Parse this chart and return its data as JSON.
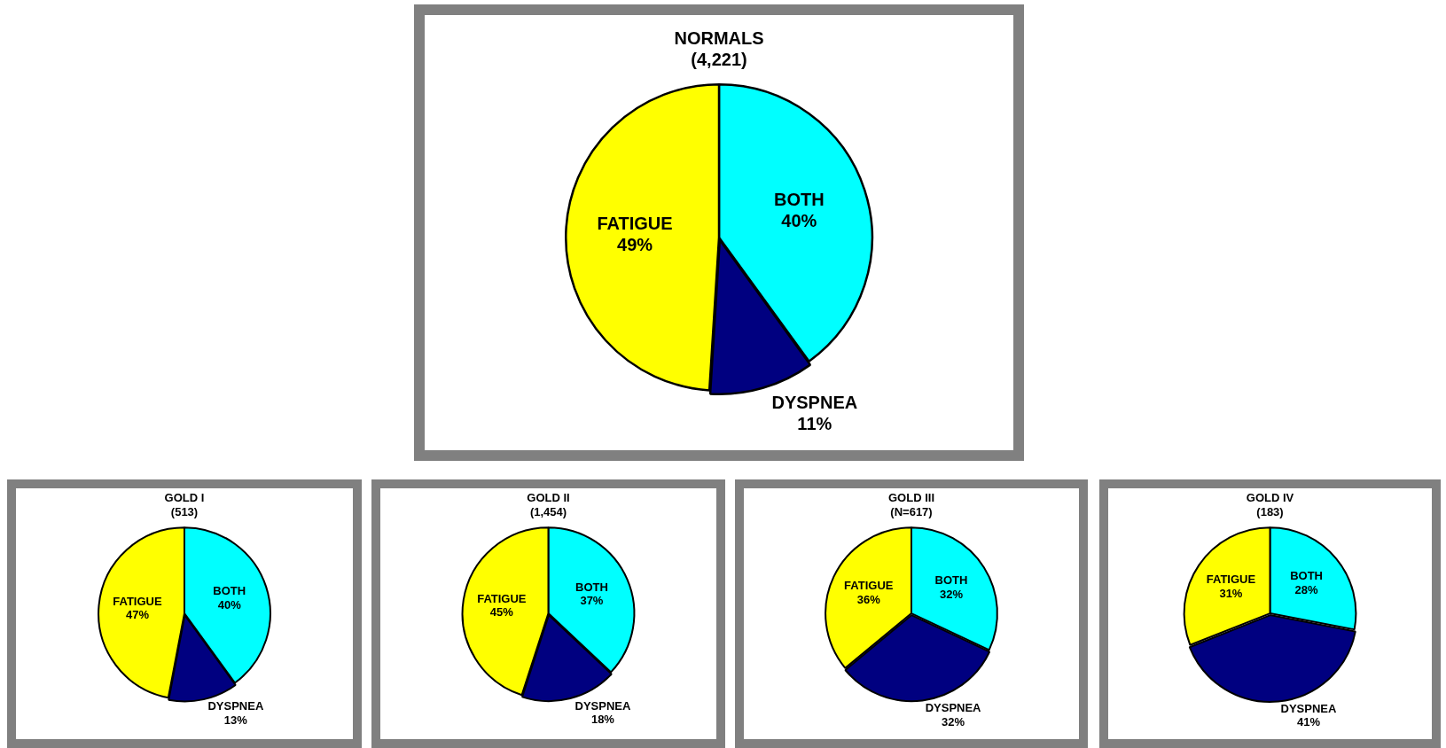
{
  "chart_data": [
    {
      "type": "pie",
      "title": "NORMALS",
      "subtitle": "(4,221)",
      "categories": [
        "BOTH",
        "DYSPNEA",
        "FATIGUE"
      ],
      "values": [
        40,
        11,
        49
      ],
      "colors": [
        "#00ffff",
        "#000080",
        "#ffff00"
      ],
      "value_labels": [
        "40%",
        "11%",
        "49%"
      ],
      "legend": false
    },
    {
      "type": "pie",
      "title": "GOLD I",
      "subtitle": "(513)",
      "categories": [
        "BOTH",
        "DYSPNEA",
        "FATIGUE"
      ],
      "values": [
        40,
        13,
        47
      ],
      "colors": [
        "#00ffff",
        "#000080",
        "#ffff00"
      ],
      "value_labels": [
        "40%",
        "13%",
        "47%"
      ],
      "legend": false
    },
    {
      "type": "pie",
      "title": "GOLD II",
      "subtitle": "(1,454)",
      "categories": [
        "BOTH",
        "DYSPNEA",
        "FATIGUE"
      ],
      "values": [
        37,
        18,
        45
      ],
      "colors": [
        "#00ffff",
        "#000080",
        "#ffff00"
      ],
      "value_labels": [
        "37%",
        "18%",
        "45%"
      ],
      "legend": false
    },
    {
      "type": "pie",
      "title": "GOLD III",
      "subtitle": "(N=617)",
      "categories": [
        "BOTH",
        "DYSPNEA",
        "FATIGUE"
      ],
      "values": [
        32,
        32,
        36
      ],
      "colors": [
        "#00ffff",
        "#000080",
        "#ffff00"
      ],
      "value_labels": [
        "32%",
        "32%",
        "36%"
      ],
      "legend": false
    },
    {
      "type": "pie",
      "title": "GOLD IV",
      "subtitle": "(183)",
      "categories": [
        "BOTH",
        "DYSPNEA",
        "FATIGUE"
      ],
      "values": [
        28,
        41,
        31
      ],
      "colors": [
        "#00ffff",
        "#000080",
        "#ffff00"
      ],
      "value_labels": [
        "28%",
        "41%",
        "31%"
      ],
      "legend": false
    }
  ]
}
